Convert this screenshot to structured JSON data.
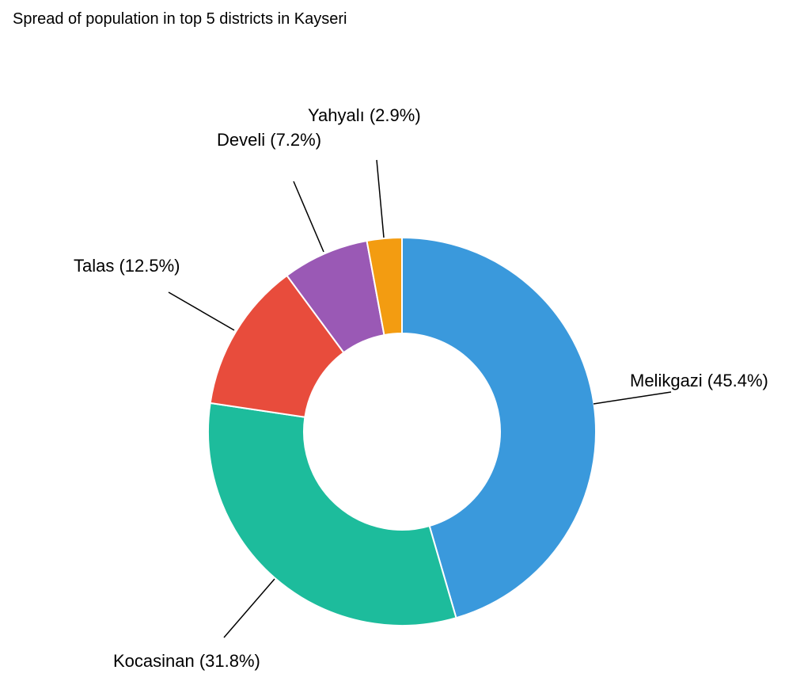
{
  "chart_data": {
    "type": "pie",
    "variant": "donut",
    "title": "Spread of population in top 5 districts in Kayseri",
    "slices": [
      {
        "label": "Melikgazi",
        "value": 45.4,
        "display": "Melikgazi (45.4%)",
        "color": "#3a99dc"
      },
      {
        "label": "Kocasinan",
        "value": 31.8,
        "display": "Kocasinan (31.8%)",
        "color": "#1dbc9c"
      },
      {
        "label": "Talas",
        "value": 12.5,
        "display": "Talas (12.5%)",
        "color": "#e84c3c"
      },
      {
        "label": "Develi",
        "value": 7.2,
        "display": "Develi (7.2%)",
        "color": "#9a59b5"
      },
      {
        "label": "Yahyalı",
        "value": 2.9,
        "display": "Yahyalı (2.9%)",
        "color": "#f39c11"
      }
    ],
    "legend": "none"
  }
}
